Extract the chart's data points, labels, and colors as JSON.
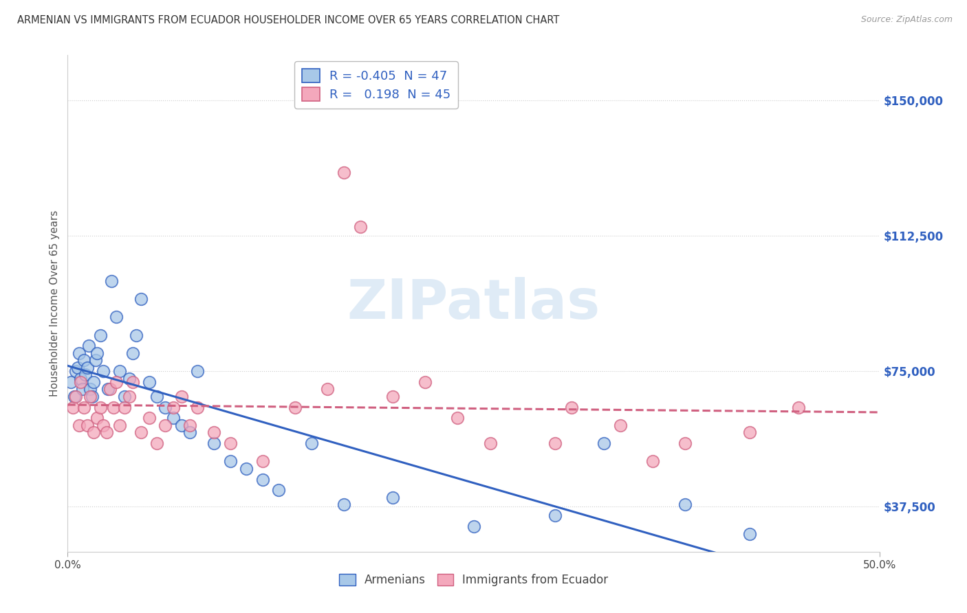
{
  "title": "ARMENIAN VS IMMIGRANTS FROM ECUADOR HOUSEHOLDER INCOME OVER 65 YEARS CORRELATION CHART",
  "source": "Source: ZipAtlas.com",
  "ylabel": "Householder Income Over 65 years",
  "xlim": [
    0.0,
    0.5
  ],
  "ylim": [
    25000,
    162500
  ],
  "yticks": [
    37500,
    75000,
    112500,
    150000
  ],
  "ytick_labels": [
    "$37,500",
    "$75,000",
    "$112,500",
    "$150,000"
  ],
  "xtick_labels": [
    "0.0%",
    "50.0%"
  ],
  "legend_r_armenian": "-0.405",
  "legend_n_armenian": "47",
  "legend_r_ecuador": "0.198",
  "legend_n_ecuador": "45",
  "color_armenian": "#a8c8e8",
  "color_ecuador": "#f4a8bc",
  "line_color_armenian": "#3060c0",
  "line_color_ecuador": "#d06080",
  "watermark": "ZIPatlas",
  "armenian_x": [
    0.002,
    0.004,
    0.005,
    0.006,
    0.007,
    0.008,
    0.009,
    0.01,
    0.011,
    0.012,
    0.013,
    0.014,
    0.015,
    0.016,
    0.017,
    0.018,
    0.02,
    0.022,
    0.025,
    0.027,
    0.03,
    0.032,
    0.035,
    0.038,
    0.04,
    0.042,
    0.045,
    0.05,
    0.055,
    0.06,
    0.065,
    0.07,
    0.075,
    0.08,
    0.09,
    0.1,
    0.11,
    0.12,
    0.13,
    0.15,
    0.17,
    0.2,
    0.25,
    0.3,
    0.33,
    0.38,
    0.42
  ],
  "armenian_y": [
    72000,
    68000,
    75000,
    76000,
    80000,
    73000,
    70000,
    78000,
    74000,
    76000,
    82000,
    70000,
    68000,
    72000,
    78000,
    80000,
    85000,
    75000,
    70000,
    100000,
    90000,
    75000,
    68000,
    73000,
    80000,
    85000,
    95000,
    72000,
    68000,
    65000,
    62000,
    60000,
    58000,
    75000,
    55000,
    50000,
    48000,
    45000,
    42000,
    55000,
    38000,
    40000,
    32000,
    35000,
    55000,
    38000,
    30000
  ],
  "ecuador_x": [
    0.003,
    0.005,
    0.007,
    0.008,
    0.01,
    0.012,
    0.014,
    0.016,
    0.018,
    0.02,
    0.022,
    0.024,
    0.026,
    0.028,
    0.03,
    0.032,
    0.035,
    0.038,
    0.04,
    0.045,
    0.05,
    0.055,
    0.06,
    0.065,
    0.07,
    0.075,
    0.08,
    0.09,
    0.1,
    0.12,
    0.14,
    0.16,
    0.17,
    0.18,
    0.2,
    0.22,
    0.24,
    0.26,
    0.3,
    0.31,
    0.34,
    0.36,
    0.38,
    0.42,
    0.45
  ],
  "ecuador_y": [
    65000,
    68000,
    60000,
    72000,
    65000,
    60000,
    68000,
    58000,
    62000,
    65000,
    60000,
    58000,
    70000,
    65000,
    72000,
    60000,
    65000,
    68000,
    72000,
    58000,
    62000,
    55000,
    60000,
    65000,
    68000,
    60000,
    65000,
    58000,
    55000,
    50000,
    65000,
    70000,
    130000,
    115000,
    68000,
    72000,
    62000,
    55000,
    55000,
    65000,
    60000,
    50000,
    55000,
    58000,
    65000
  ]
}
